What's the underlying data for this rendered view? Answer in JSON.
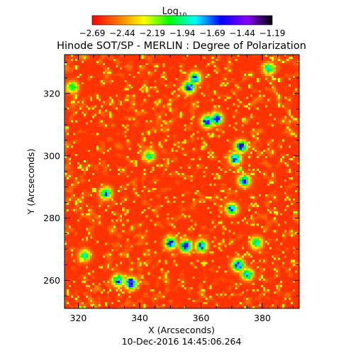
{
  "chart_data": {
    "type": "heatmap",
    "title": "Hinode SOT/SP - MERLIN : Degree of Polarization",
    "colorbar": {
      "label_main": "Log",
      "label_sub": "10",
      "range": [
        -2.69,
        -1.19
      ],
      "tick_labels": [
        "-2.69",
        "-2.44",
        "-2.19",
        "-1.94",
        "-1.69",
        "-1.44",
        "-1.19"
      ],
      "colormap": [
        "#ff0000",
        "#ff7700",
        "#ffff00",
        "#00ff00",
        "#00ffff",
        "#0000ff",
        "#8800ff",
        "#000000"
      ]
    },
    "xlabel": "X (Arcseconds)",
    "ylabel": "Y (Arcseconds)",
    "xlim": [
      315.5,
      392
    ],
    "ylim": [
      251,
      332.5
    ],
    "x_ticks": [
      "320",
      "340",
      "360",
      "380"
    ],
    "y_ticks": [
      "260",
      "280",
      "300",
      "320"
    ],
    "x_tick_values": [
      320,
      340,
      360,
      380
    ],
    "y_tick_values": [
      260,
      280,
      300,
      320
    ],
    "footer": "10-Dec-2016 14:45:06.264",
    "background_value": -2.6,
    "features": [
      {
        "x": 337,
        "y": 259,
        "value": -1.35
      },
      {
        "x": 333,
        "y": 260,
        "value": -1.6
      },
      {
        "x": 355,
        "y": 271,
        "value": -1.4
      },
      {
        "x": 350,
        "y": 272,
        "value": -1.6
      },
      {
        "x": 360,
        "y": 271,
        "value": -1.6
      },
      {
        "x": 372,
        "y": 265,
        "value": -1.5
      },
      {
        "x": 375,
        "y": 262,
        "value": -1.7
      },
      {
        "x": 362,
        "y": 311,
        "value": -1.45
      },
      {
        "x": 365,
        "y": 312,
        "value": -1.55
      },
      {
        "x": 356,
        "y": 322,
        "value": -1.5
      },
      {
        "x": 358,
        "y": 325,
        "value": -1.6
      },
      {
        "x": 373,
        "y": 303,
        "value": -1.5
      },
      {
        "x": 371,
        "y": 299,
        "value": -1.6
      },
      {
        "x": 374,
        "y": 292,
        "value": -1.6
      },
      {
        "x": 370,
        "y": 283,
        "value": -1.7
      },
      {
        "x": 329,
        "y": 288,
        "value": -1.7
      },
      {
        "x": 343,
        "y": 300,
        "value": -1.9
      },
      {
        "x": 378,
        "y": 272,
        "value": -1.8
      },
      {
        "x": 382,
        "y": 328,
        "value": -1.8
      },
      {
        "x": 322,
        "y": 268,
        "value": -1.9
      },
      {
        "x": 318,
        "y": 322,
        "value": -1.9
      }
    ]
  }
}
